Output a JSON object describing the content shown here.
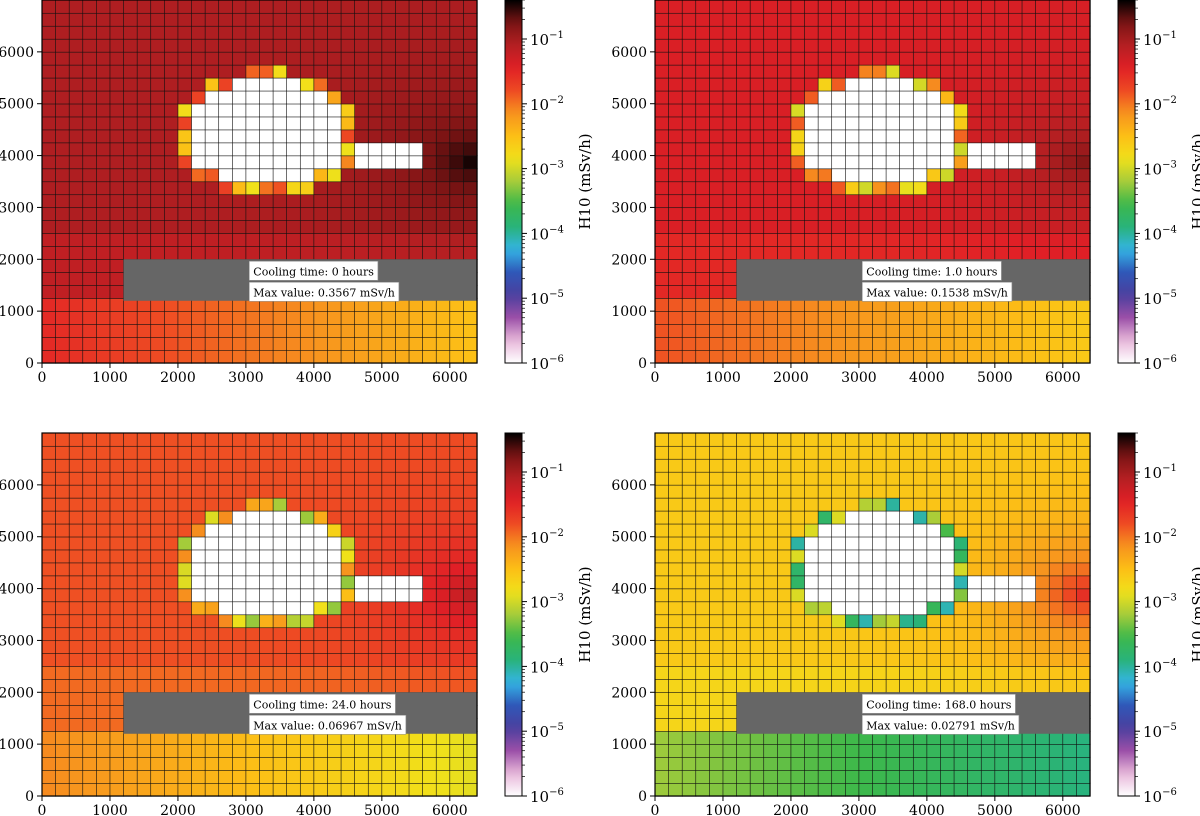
{
  "colorbar": {
    "label": "H10 (mSv/h)",
    "scale": "log",
    "range": [
      1e-06,
      0.4
    ],
    "ticks": [
      {
        "value": 1e-06,
        "label": "10",
        "exp": "−6"
      },
      {
        "value": 1e-05,
        "label": "10",
        "exp": "−5"
      },
      {
        "value": 0.0001,
        "label": "10",
        "exp": "−4"
      },
      {
        "value": 0.001,
        "label": "10",
        "exp": "−3"
      },
      {
        "value": 0.01,
        "label": "10",
        "exp": "−2"
      },
      {
        "value": 0.1,
        "label": "10",
        "exp": "−1"
      }
    ],
    "colormap": [
      "#ffffff",
      "#e7b7d9",
      "#9b4fa8",
      "#4b3f9e",
      "#2f58b8",
      "#34b4e6",
      "#29b37a",
      "#3db84a",
      "#a6cc3a",
      "#f1e11a",
      "#fcbf16",
      "#f7931e",
      "#ee4b23",
      "#e01f26",
      "#b41f22",
      "#7b1414",
      "#000000"
    ]
  },
  "chart_data": [
    {
      "type": "heatmap",
      "x_ticks": [
        "0",
        "1000",
        "2000",
        "3000",
        "4000",
        "5000",
        "6000"
      ],
      "y_ticks": [
        "0",
        "1000",
        "2000",
        "3000",
        "4000",
        "5000",
        "6000"
      ],
      "xlim": [
        0,
        6400
      ],
      "ylim": [
        0,
        7000
      ],
      "grid": true,
      "annotation": {
        "cooling": "Cooling time: 0 hours",
        "max": "Max value: 0.3567 mSv/h"
      },
      "dose": {
        "main": 0.085,
        "lower_left": 0.03,
        "lower_right": 0.003,
        "hot_spot": 0.3567,
        "ring": 0.005
      }
    },
    {
      "type": "heatmap",
      "x_ticks": [
        "0",
        "1000",
        "2000",
        "3000",
        "4000",
        "5000",
        "6000"
      ],
      "y_ticks": [
        "0",
        "1000",
        "2000",
        "3000",
        "4000",
        "5000",
        "6000"
      ],
      "xlim": [
        0,
        6400
      ],
      "ylim": [
        0,
        7000
      ],
      "grid": true,
      "annotation": {
        "cooling": "Cooling time: 1.0 hours",
        "max": "Max value: 0.1538 mSv/h"
      },
      "dose": {
        "main": 0.04,
        "lower_left": 0.015,
        "lower_right": 0.0025,
        "hot_spot": 0.1538,
        "ring": 0.0035
      }
    },
    {
      "type": "heatmap",
      "x_ticks": [
        "0",
        "1000",
        "2000",
        "3000",
        "4000",
        "5000",
        "6000"
      ],
      "y_ticks": [
        "0",
        "1000",
        "2000",
        "3000",
        "4000",
        "5000",
        "6000"
      ],
      "xlim": [
        0,
        6400
      ],
      "ylim": [
        0,
        7000
      ],
      "grid": true,
      "annotation": {
        "cooling": "Cooling time: 24.0 hours",
        "max": "Max value: 0.06967 mSv/h"
      },
      "dose": {
        "main": 0.015,
        "lower_left": 0.008,
        "lower_right": 0.0012,
        "hot_spot": 0.06967,
        "ring": 0.002
      }
    },
    {
      "type": "heatmap",
      "x_ticks": [
        "0",
        "1000",
        "2000",
        "3000",
        "4000",
        "5000",
        "6000"
      ],
      "y_ticks": [
        "0",
        "1000",
        "2000",
        "3000",
        "4000",
        "5000",
        "6000"
      ],
      "xlim": [
        0,
        6400
      ],
      "ylim": [
        0,
        7000
      ],
      "grid": true,
      "annotation": {
        "cooling": "Cooling time: 168.0 hours",
        "max": "Max value: 0.02791 mSv/h"
      },
      "dose": {
        "main": 0.0025,
        "lower_left": 0.0006,
        "lower_right": 0.00012,
        "hot_spot": 0.02791,
        "ring": 0.0003
      }
    }
  ]
}
